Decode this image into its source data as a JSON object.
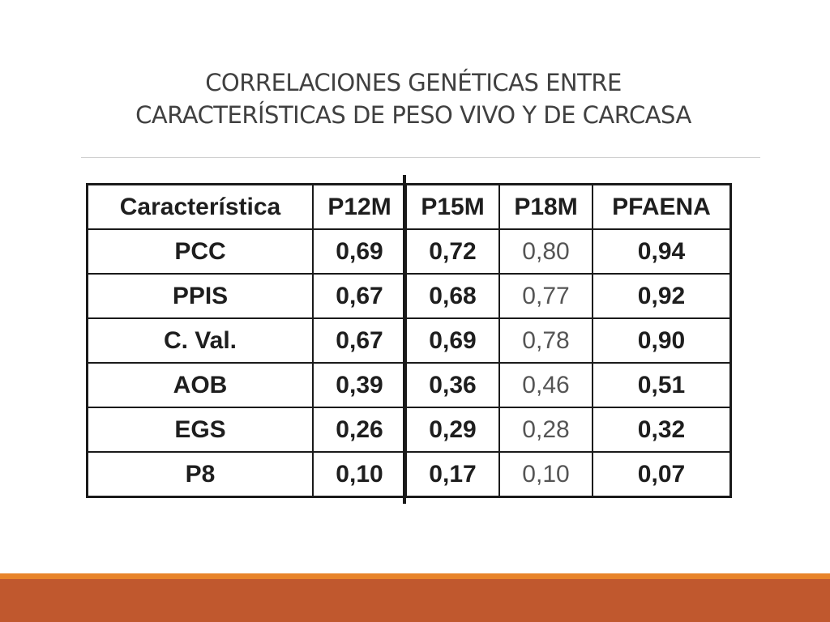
{
  "slide": {
    "title_line1": "CORRELACIONES GENÉTICAS ENTRE",
    "title_line2": "CARACTERÍSTICAS DE PESO VIVO Y DE CARCASA"
  },
  "table": {
    "headers": [
      "Característica",
      "P12M",
      "P15M",
      "P18M",
      "PFAENA"
    ],
    "rows": [
      [
        "PCC",
        "0,69",
        "0,72",
        "0,80",
        "0,94"
      ],
      [
        "PPIS",
        "0,67",
        "0,68",
        "0,77",
        "0,92"
      ],
      [
        "C. Val.",
        "0,67",
        "0,69",
        "0,78",
        "0,90"
      ],
      [
        "AOB",
        "0,39",
        "0,36",
        "0,46",
        "0,51"
      ],
      [
        "EGS",
        "0,26",
        "0,29",
        "0,28",
        "0,32"
      ],
      [
        "P8",
        "0,10",
        "0,17",
        "0,10",
        "0,07"
      ]
    ]
  },
  "colors": {
    "footer_accent": "#e8842a",
    "footer_bar": "#c0582e",
    "title_text": "#404040"
  }
}
